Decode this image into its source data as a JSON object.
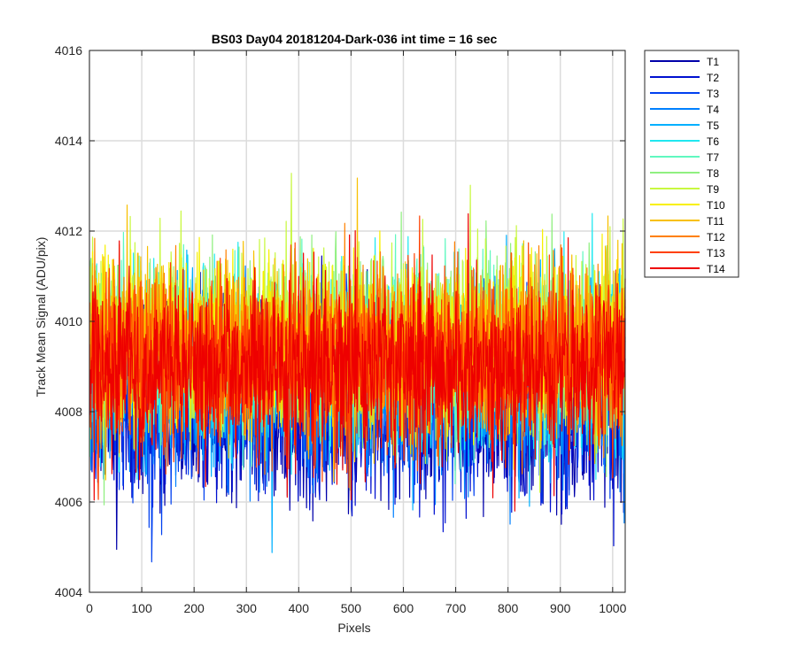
{
  "chart_data": {
    "type": "line",
    "title": "BS03 Day04 20181204-Dark-036 int time = 16 sec",
    "xlabel": "Pixels",
    "ylabel": "Track Mean Signal (ADU/pix)",
    "xlim": [
      0,
      1024
    ],
    "ylim": [
      4004,
      4016
    ],
    "x_ticks": [
      0,
      100,
      200,
      300,
      400,
      500,
      600,
      700,
      800,
      900,
      1000
    ],
    "y_ticks": [
      4004,
      4006,
      4008,
      4010,
      4012,
      4014,
      4016
    ],
    "grid": true,
    "legend_position": "outside-top-right",
    "x": {
      "start": 1,
      "end": 1024,
      "step": 1
    },
    "series": [
      {
        "name": "T1",
        "color": "#0000aa",
        "mean": 4008.0,
        "spread": 0.95,
        "values_note": "dense noise, one point per pixel"
      },
      {
        "name": "T2",
        "color": "#0010d0",
        "mean": 4008.1,
        "spread": 0.95
      },
      {
        "name": "T3",
        "color": "#0040f0",
        "mean": 4008.3,
        "spread": 0.95
      },
      {
        "name": "T4",
        "color": "#0080ff",
        "mean": 4008.6,
        "spread": 0.95
      },
      {
        "name": "T5",
        "color": "#00b0ff",
        "mean": 4008.9,
        "spread": 0.95
      },
      {
        "name": "T6",
        "color": "#20e8f0",
        "mean": 4009.2,
        "spread": 0.95
      },
      {
        "name": "T7",
        "color": "#60f8c0",
        "mean": 4009.4,
        "spread": 0.95
      },
      {
        "name": "T8",
        "color": "#90f080",
        "mean": 4009.5,
        "spread": 0.95
      },
      {
        "name": "T9",
        "color": "#c8f840",
        "mean": 4009.6,
        "spread": 0.95
      },
      {
        "name": "T10",
        "color": "#f8f000",
        "mean": 4009.5,
        "spread": 0.95
      },
      {
        "name": "T11",
        "color": "#f8c000",
        "mean": 4009.4,
        "spread": 0.95
      },
      {
        "name": "T12",
        "color": "#ff8000",
        "mean": 4009.3,
        "spread": 0.95
      },
      {
        "name": "T13",
        "color": "#ff4000",
        "mean": 4009.1,
        "spread": 0.95
      },
      {
        "name": "T14",
        "color": "#ee0000",
        "mean": 4009.0,
        "spread": 0.95
      }
    ]
  }
}
